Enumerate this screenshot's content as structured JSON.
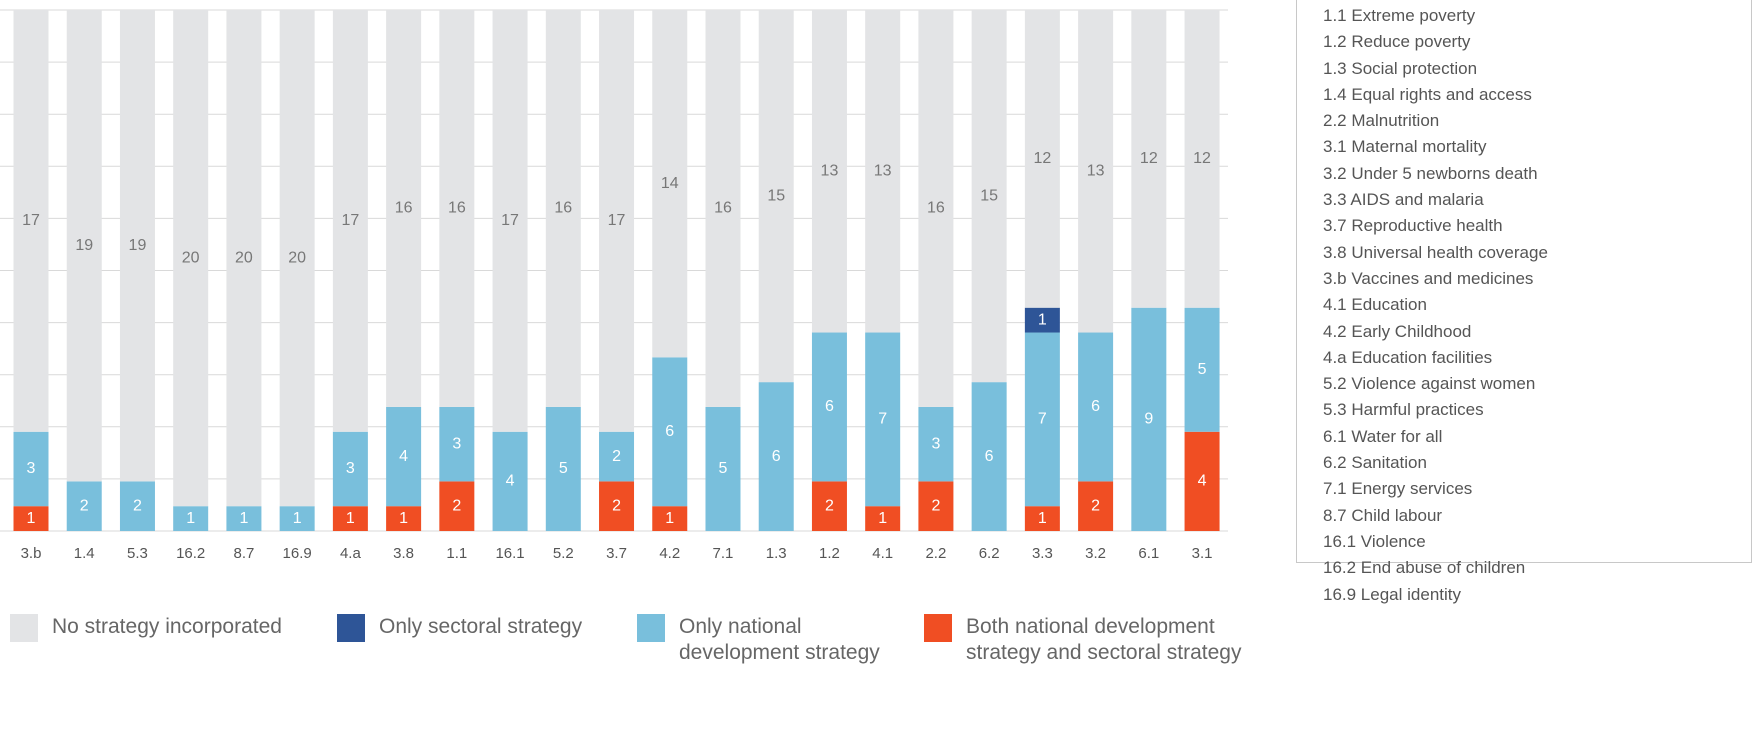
{
  "chart_data": {
    "type": "stacked_bar",
    "categories": [
      "3.b",
      "1.4",
      "5.3",
      "16.2",
      "8.7",
      "16.9",
      "4.a",
      "3.8",
      "1.1",
      "16.1",
      "5.2",
      "3.7",
      "4.2",
      "7.1",
      "1.3",
      "1.2",
      "4.1",
      "2.2",
      "6.2",
      "3.3",
      "3.2",
      "6.1",
      "3.1"
    ],
    "series": [
      {
        "name": "No strategy incorporated",
        "color": "#e3e4e6",
        "values": [
          17,
          19,
          19,
          20,
          20,
          20,
          17,
          16,
          16,
          17,
          16,
          17,
          14,
          16,
          15,
          13,
          13,
          16,
          15,
          12,
          13,
          12,
          12
        ]
      },
      {
        "name": "Only sectoral strategy",
        "color": "#2e5597",
        "values": [
          0,
          0,
          0,
          0,
          0,
          0,
          0,
          0,
          0,
          0,
          0,
          0,
          0,
          0,
          0,
          0,
          0,
          0,
          0,
          1,
          0,
          0,
          0
        ]
      },
      {
        "name": "Only national development strategy",
        "color": "#79bfdc",
        "values": [
          3,
          2,
          2,
          1,
          1,
          1,
          3,
          4,
          3,
          4,
          5,
          2,
          6,
          5,
          6,
          6,
          7,
          3,
          6,
          7,
          6,
          9,
          5
        ]
      },
      {
        "name": "Both national development strategy and sectoral strategy",
        "color": "#f04e23",
        "values": [
          1,
          0,
          0,
          0,
          0,
          0,
          1,
          1,
          2,
          0,
          0,
          2,
          1,
          0,
          0,
          2,
          1,
          2,
          0,
          1,
          2,
          0,
          4
        ]
      }
    ],
    "ylim": [
      0,
      21
    ],
    "yticks": [
      0,
      2.1,
      4.2,
      6.3,
      8.4,
      10.5,
      12.6,
      14.7,
      16.8,
      18.9,
      21
    ],
    "grid": true,
    "key": [
      "1.1 Extreme poverty",
      "1.2 Reduce poverty",
      "1.3 Social protection",
      "1.4 Equal rights and access",
      "2.2 Malnutrition",
      "3.1 Maternal mortality",
      "3.2 Under 5 newborns death",
      "3.3 AIDS and malaria",
      "3.7 Reproductive health",
      "3.8 Universal health coverage",
      "3.b Vaccines and medicines",
      "4.1 Education",
      "4.2 Early Childhood",
      "4.a Education facilities",
      "5.2 Violence against women",
      "5.3 Harmful practices",
      "6.1 Water for all",
      "6.2 Sanitation",
      "7.1 Energy services",
      "8.7 Child labour",
      "16.1 Violence",
      "16.2 End abuse of children",
      "16.9 Legal identity"
    ]
  }
}
